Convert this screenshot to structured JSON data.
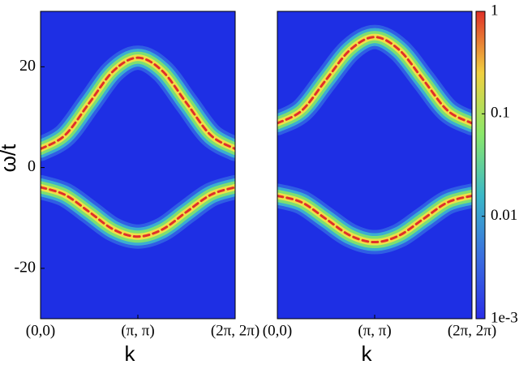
{
  "chart_data": [
    {
      "type": "line",
      "x": [
        0,
        0.25,
        0.5,
        0.75,
        1,
        1.25,
        1.5,
        1.75,
        2
      ],
      "series": [
        {
          "color": "#e0302a",
          "values": [
            3.7,
            6.4,
            12.8,
            19.2,
            21.8,
            19.2,
            12.8,
            6.4,
            3.7
          ]
        },
        {
          "color": "#e0302a",
          "values": [
            -3.9,
            -5.4,
            -8.8,
            -12.3,
            -13.7,
            -12.3,
            -8.8,
            -5.4,
            -3.9
          ]
        }
      ],
      "background": "#1e2fe4",
      "xlim": [
        0,
        2
      ],
      "xticks": [
        {
          "value": 0,
          "label": "(0,0)"
        },
        {
          "value": 1,
          "label": "(π, π)"
        },
        {
          "value": 2,
          "label": "(2π, 2π)"
        }
      ],
      "xlabel": "k",
      "ylabel": "ω/t",
      "ylim": [
        -30,
        31
      ],
      "yticks": [
        -20,
        0,
        20
      ]
    },
    {
      "type": "line",
      "x": [
        0,
        0.25,
        0.5,
        0.75,
        1,
        1.25,
        1.5,
        1.75,
        2
      ],
      "series": [
        {
          "color": "#e0302a",
          "values": [
            8.8,
            11.3,
            17.4,
            23.4,
            25.9,
            23.4,
            17.4,
            11.3,
            8.8
          ]
        },
        {
          "color": "#e0302a",
          "values": [
            -5.6,
            -6.9,
            -10.2,
            -13.5,
            -14.8,
            -13.5,
            -10.2,
            -6.9,
            -5.6
          ]
        }
      ],
      "background": "#1e2fe4",
      "xlim": [
        0,
        2
      ],
      "xticks": [
        {
          "value": 0,
          "label": "(0,0)"
        },
        {
          "value": 1,
          "label": "(π, π)"
        },
        {
          "value": 2,
          "label": "(2π, 2π)"
        }
      ],
      "xlabel": "k",
      "ylim": [
        -30,
        31
      ],
      "zlim": [
        0.001,
        1
      ],
      "zticks": [
        1,
        0.1,
        0.01,
        {
          "value": 0.001,
          "label": "1e-3"
        }
      ],
      "zscale": "log"
    }
  ]
}
